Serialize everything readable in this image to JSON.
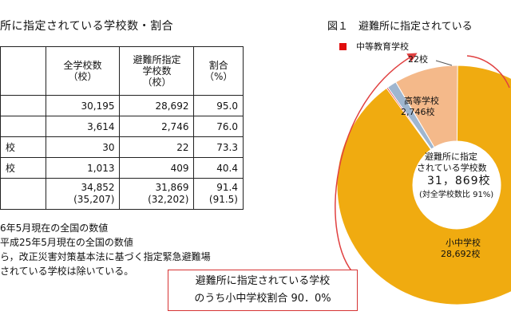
{
  "table_title": "所に指定されている学校数・割合",
  "table": {
    "headers": [
      "",
      "全学校数\n（校）",
      "避難所指定\n学校数\n（校）",
      "割合\n（%）"
    ],
    "rows": [
      {
        "label": "",
        "total": "30,195",
        "designated": "28,692",
        "ratio": "95.0"
      },
      {
        "label": "",
        "total": "3,614",
        "designated": "2,746",
        "ratio": "76.0"
      },
      {
        "label": "校",
        "total": "30",
        "designated": "22",
        "ratio": "73.3"
      },
      {
        "label": "校",
        "total": "1,013",
        "designated": "409",
        "ratio": "40.4"
      },
      {
        "label": "",
        "total": "34,852\n(35,207)",
        "designated": "31,869\n(32,202)",
        "ratio": "91.4\n(91.5)"
      }
    ]
  },
  "notes": [
    "6年5月現在の全国の数値",
    "平成25年5月現在の全国の数値",
    "ら，改正災害対策基本法に基づく指定緊急避難場",
    "されている学校は除いている。"
  ],
  "figure_title": "図１　避難所に指定されている",
  "chart_data": {
    "type": "pie",
    "donut": true,
    "slices": [
      {
        "label": "小中学校",
        "value_text": "28,692校",
        "value": 28692,
        "color": "#f0ab10"
      },
      {
        "label": "中等教育学校",
        "value_text": "22校",
        "value": 22,
        "color": "#e00d0d"
      },
      {
        "label": "",
        "value": 409,
        "color": "#9fb6cf"
      },
      {
        "label": "高等学校",
        "value_text": "2,746校",
        "value": 2746,
        "color": "#f4b98a"
      }
    ],
    "center_text": [
      "避難所に指定",
      "されている学校数",
      "31，869校",
      "(対全学校数比 91%)"
    ],
    "annotation": [
      "避難所に指定されている学校",
      "のうち小中学校割合 90．0%"
    ],
    "legend": "中等教育学校"
  }
}
